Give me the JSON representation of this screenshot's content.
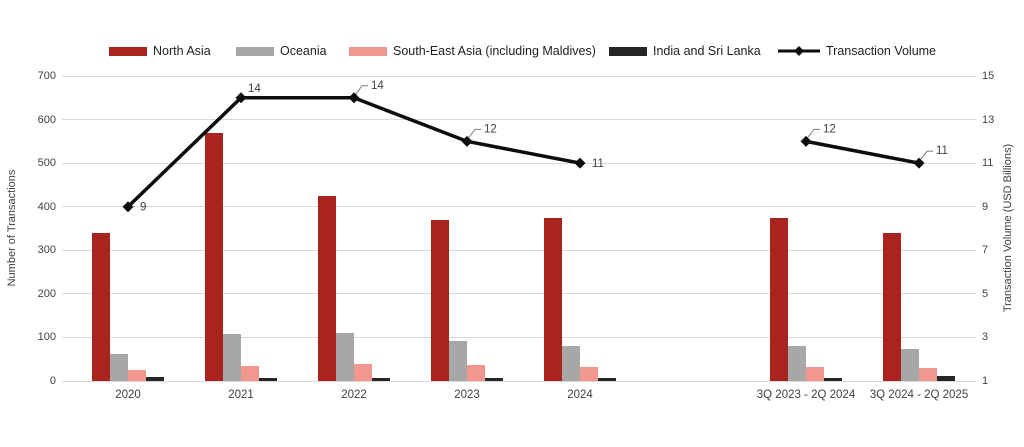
{
  "chart_data": {
    "type": "bar+line combo",
    "title": "",
    "categories": [
      "2020",
      "2021",
      "2022",
      "2023",
      "2024",
      "",
      "3Q 2023 - 2Q 2024",
      "3Q 2024 - 2Q 2025"
    ],
    "bar_series": [
      {
        "name": "North Asia",
        "color": "#a9241f",
        "values": [
          340,
          570,
          425,
          370,
          375,
          null,
          375,
          340
        ]
      },
      {
        "name": "Oceania",
        "color": "#a7a7a7",
        "values": [
          62,
          107,
          110,
          92,
          80,
          null,
          80,
          73
        ]
      },
      {
        "name": "South-East Asia (including Maldives)",
        "color": "#f2978d",
        "values": [
          25,
          34,
          38,
          36,
          31,
          null,
          33,
          30
        ]
      },
      {
        "name": "India and Sri Lanka",
        "color": "#262626",
        "values": [
          10,
          8,
          6,
          8,
          6,
          null,
          8,
          12
        ]
      }
    ],
    "line_series": {
      "name": "Transaction Volume",
      "color": "#0d0d0d",
      "values": [
        9,
        14,
        14,
        12,
        11,
        null,
        12,
        11
      ],
      "labels": [
        "9",
        "14",
        "14",
        "12",
        "11",
        "",
        "12",
        "11"
      ],
      "label_styles": [
        "right",
        "above",
        "callout",
        "callout",
        "right",
        "",
        "callout",
        "callout"
      ]
    },
    "left_axis": {
      "title": "Number of Transactions",
      "min": 0,
      "max": 700,
      "step": 100,
      "ticks": [
        "0",
        "100",
        "200",
        "300",
        "400",
        "500",
        "600",
        "700"
      ]
    },
    "right_axis": {
      "title": "Transaction Volume (USD Billions)",
      "min": 1,
      "max": 15,
      "step": 2,
      "ticks": [
        "1",
        "3",
        "5",
        "7",
        "9",
        "11",
        "13",
        "15"
      ]
    },
    "grid": true,
    "legend_position": "top",
    "colors": {
      "gridline": "#d9d9d9",
      "tick_text": "#404040",
      "legend_text": "#1f1f1f",
      "background": "#ffffff"
    }
  }
}
